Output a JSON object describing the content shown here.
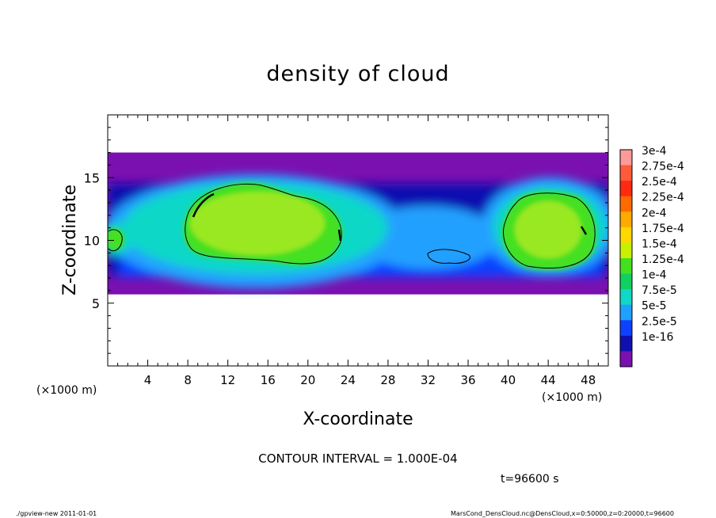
{
  "chart_data": {
    "type": "heatmap",
    "title": "density of cloud",
    "xlabel": "X-coordinate",
    "ylabel": "Z-coordinate",
    "x_unit_left": "(×1000 m)",
    "x_unit_right": "(×1000 m)",
    "xlim": [
      0,
      50
    ],
    "ylim": [
      0,
      20
    ],
    "x_ticks": [
      "4",
      "8",
      "12",
      "16",
      "20",
      "24",
      "28",
      "32",
      "36",
      "40",
      "44",
      "48"
    ],
    "x_tick_values": [
      4,
      8,
      12,
      16,
      20,
      24,
      28,
      32,
      36,
      40,
      44,
      48
    ],
    "y_ticks": [
      "5",
      "10",
      "15"
    ],
    "y_tick_values": [
      5,
      10,
      15
    ],
    "contour_interval": "CONTOUR INTERVAL = 1.000E-04",
    "time_label": "t=96600 s",
    "colorbar": {
      "labels": [
        "3e-4",
        "2.75e-4",
        "2.5e-4",
        "2.25e-4",
        "2e-4",
        "1.75e-4",
        "1.5e-4",
        "1.25e-4",
        "1e-4",
        "7.5e-5",
        "5e-5",
        "2.5e-5",
        "1e-16"
      ],
      "colors": [
        "#ff9a9a",
        "#ff5a3a",
        "#ff2a10",
        "#ff6a00",
        "#ffaa00",
        "#ffd800",
        "#c8f000",
        "#44e020",
        "#10d060",
        "#10d8c8",
        "#20a0ff",
        "#1040ff",
        "#1010b0",
        "#7a10b0"
      ]
    },
    "cloud_layer_z": [
      5.7,
      17
    ],
    "cloud_regions": [
      {
        "x_center": 16,
        "z_center": 12.3,
        "level": "1.25e-4"
      },
      {
        "x_center": 44,
        "z_center": 11,
        "level": "1.25e-4"
      },
      {
        "x_center": 1,
        "z_center": 10.5,
        "level": "1e-4"
      }
    ]
  },
  "footer": {
    "left": "./gpview-new  2011-01-01",
    "right": "MarsCond_DensCloud.nc@DensCloud,x=0:50000,z=0:20000,t=96600"
  }
}
